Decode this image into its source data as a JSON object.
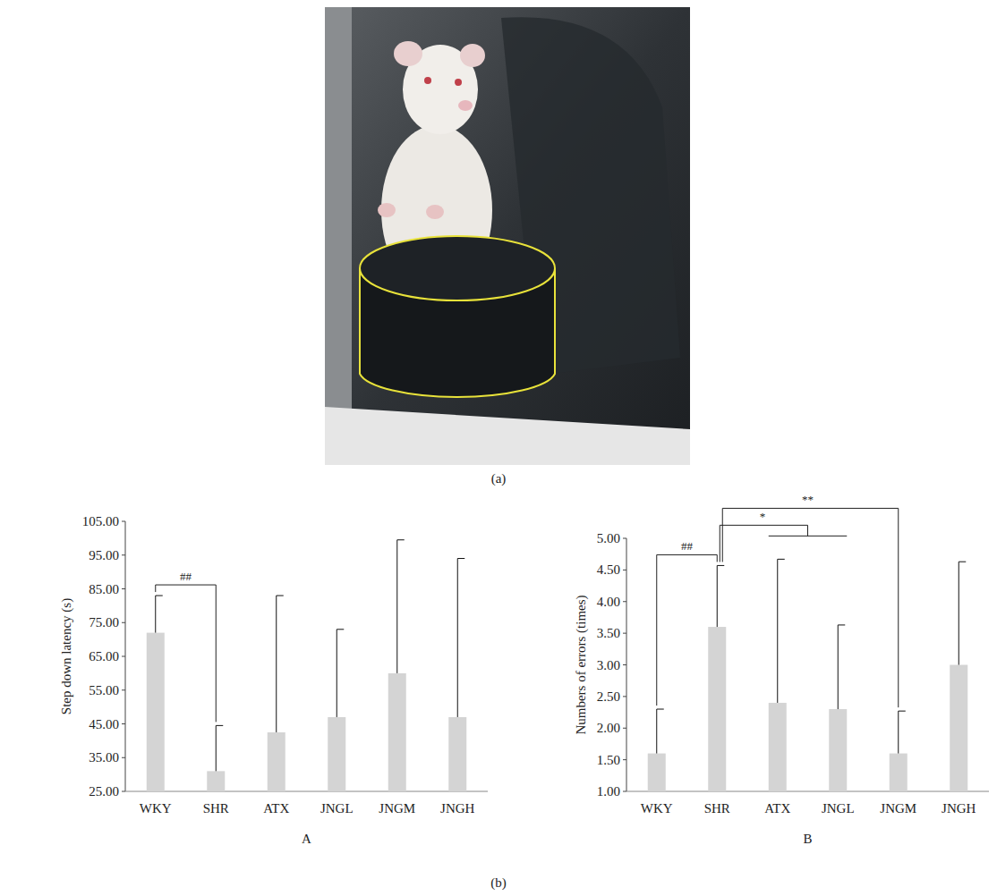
{
  "figure": {
    "photo_label": "(a)",
    "charts_label": "(b)"
  },
  "chart_data": [
    {
      "type": "bar",
      "panel": "A",
      "y_label": "Step down latency (s)",
      "categories": [
        "WKY",
        "SHR",
        "ATX",
        "JNGL",
        "JNGM",
        "JNGH"
      ],
      "values": [
        72,
        31,
        42.5,
        47,
        60,
        47
      ],
      "errors": [
        11,
        13.5,
        40.5,
        26,
        39.5,
        47
      ],
      "color": "#d4d4d4",
      "ylim": [
        25,
        105
      ],
      "yticks": [
        {
          "value": 25,
          "label": "25.00"
        },
        {
          "value": 35,
          "label": "35.00"
        },
        {
          "value": 45,
          "label": "45.00"
        },
        {
          "value": 55,
          "label": "55.00"
        },
        {
          "value": 65,
          "label": "65.00"
        },
        {
          "value": 75,
          "label": "75.00"
        },
        {
          "value": 85,
          "label": "85.00"
        },
        {
          "value": 95,
          "label": "95.00"
        },
        {
          "value": 105,
          "label": "105.00"
        }
      ],
      "grid": false,
      "annotations": [
        {
          "text": "##",
          "from": 0,
          "to": [
            1
          ]
        }
      ]
    },
    {
      "type": "bar",
      "panel": "B",
      "y_label": "Numbers of errors (times)",
      "categories": [
        "WKY",
        "SHR",
        "ATX",
        "JNGL",
        "JNGM",
        "JNGH"
      ],
      "values": [
        1.6,
        3.6,
        2.4,
        2.3,
        1.6,
        3.0
      ],
      "errors": [
        0.7,
        0.97,
        2.27,
        1.33,
        0.67,
        1.63
      ],
      "color": "#d4d4d4",
      "ylim": [
        1,
        5
      ],
      "yticks": [
        {
          "value": 1,
          "label": "1.00"
        },
        {
          "value": 1.5,
          "label": "1.50"
        },
        {
          "value": 2,
          "label": "2.00"
        },
        {
          "value": 2.5,
          "label": "2.50"
        },
        {
          "value": 3,
          "label": "3.00"
        },
        {
          "value": 3.5,
          "label": "3.50"
        },
        {
          "value": 4,
          "label": "4.00"
        },
        {
          "value": 4.5,
          "label": "4.50"
        },
        {
          "value": 5,
          "label": "5.00"
        }
      ],
      "grid": false,
      "annotations": [
        {
          "text": "##",
          "from": 0,
          "to": [
            1
          ]
        },
        {
          "text": "*",
          "from": 1,
          "to": [
            2,
            3
          ]
        },
        {
          "text": "**",
          "from": 1,
          "to": [
            4
          ]
        }
      ]
    }
  ]
}
